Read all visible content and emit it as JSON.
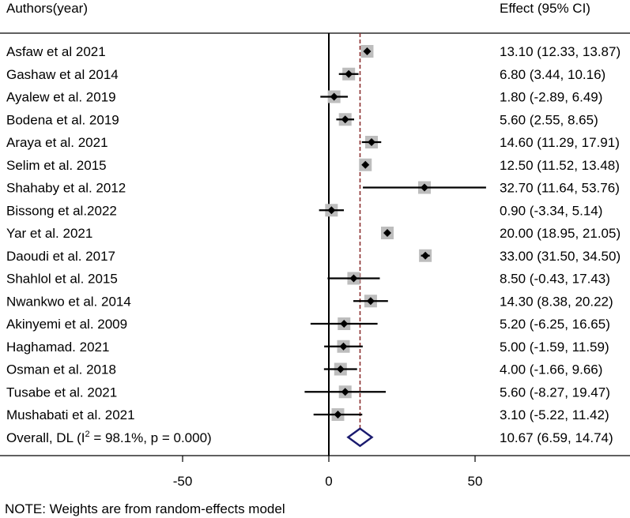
{
  "chart_data": {
    "type": "forest",
    "header": {
      "left": "Authors(year)",
      "right": "Effect (95% CI)"
    },
    "studies": [
      {
        "label": "Asfaw et al 2021",
        "effect": 13.1,
        "lower": 12.33,
        "upper": 13.87,
        "ci_text": "13.10 (12.33, 13.87)"
      },
      {
        "label": "Gashaw et al 2014",
        "effect": 6.8,
        "lower": 3.44,
        "upper": 10.16,
        "ci_text": "6.80 (3.44, 10.16)"
      },
      {
        "label": "Ayalew et al.  2019",
        "effect": 1.8,
        "lower": -2.89,
        "upper": 6.49,
        "ci_text": "1.80 (-2.89, 6.49)"
      },
      {
        "label": "Bodena et al. 2019",
        "effect": 5.6,
        "lower": 2.55,
        "upper": 8.65,
        "ci_text": "5.60 (2.55, 8.65)"
      },
      {
        "label": "Araya et al. 2021",
        "effect": 14.6,
        "lower": 11.29,
        "upper": 17.91,
        "ci_text": "14.60 (11.29, 17.91)"
      },
      {
        "label": "Selim et al. 2015",
        "effect": 12.5,
        "lower": 11.52,
        "upper": 13.48,
        "ci_text": "12.50 (11.52, 13.48)"
      },
      {
        "label": "Shahaby et al. 2012",
        "effect": 32.7,
        "lower": 11.64,
        "upper": 53.76,
        "ci_text": "32.70 (11.64, 53.76)"
      },
      {
        "label": "Bissong et al.2022",
        "effect": 0.9,
        "lower": -3.34,
        "upper": 5.14,
        "ci_text": "0.90 (-3.34, 5.14)"
      },
      {
        "label": "Yar et al. 2021",
        "effect": 20.0,
        "lower": 18.95,
        "upper": 21.05,
        "ci_text": "20.00 (18.95, 21.05)"
      },
      {
        "label": "Daoudi et al. 2017",
        "effect": 33.0,
        "lower": 31.5,
        "upper": 34.5,
        "ci_text": "33.00 (31.50, 34.50)"
      },
      {
        "label": "Shahlol et al. 2015",
        "effect": 8.5,
        "lower": -0.43,
        "upper": 17.43,
        "ci_text": "8.50 (-0.43, 17.43)"
      },
      {
        "label": "Nwankwo et al. 2014",
        "effect": 14.3,
        "lower": 8.38,
        "upper": 20.22,
        "ci_text": "14.30 (8.38, 20.22)"
      },
      {
        "label": "Akinyemi et al. 2009",
        "effect": 5.2,
        "lower": -6.25,
        "upper": 16.65,
        "ci_text": "5.20 (-6.25, 16.65)"
      },
      {
        "label": "Haghamad. 2021",
        "effect": 5.0,
        "lower": -1.59,
        "upper": 11.59,
        "ci_text": "5.00 (-1.59, 11.59)"
      },
      {
        "label": "Osman et al. 2018",
        "effect": 4.0,
        "lower": -1.66,
        "upper": 9.66,
        "ci_text": "4.00 (-1.66, 9.66)"
      },
      {
        "label": "Tusabe et al. 2021",
        "effect": 5.6,
        "lower": -8.27,
        "upper": 19.47,
        "ci_text": "5.60 (-8.27, 19.47)"
      },
      {
        "label": "Mushabati et al. 2021",
        "effect": 3.1,
        "lower": -5.22,
        "upper": 11.42,
        "ci_text": "3.10 (-5.22, 11.42)"
      }
    ],
    "overall": {
      "label_prefix": "Overall, DL (I",
      "label_sup": "2",
      "label_suffix": " = 98.1%, p = 0.000)",
      "effect": 10.67,
      "lower": 6.59,
      "upper": 14.74,
      "ci_text": "10.67 (6.59, 14.74)"
    },
    "x_ticks": [
      {
        "value": -50,
        "label": "-50"
      },
      {
        "value": 0,
        "label": "0"
      },
      {
        "value": 50,
        "label": "50"
      }
    ],
    "xlim": [
      -101,
      101
    ],
    "null_line": 0,
    "footnote": "NOTE: Weights are from random-effects model",
    "colors": {
      "box": "#bdbdbd",
      "marker": "#000000",
      "overall_diamond": "#1a1a6e",
      "overall_line": "#8b2f2f"
    }
  }
}
